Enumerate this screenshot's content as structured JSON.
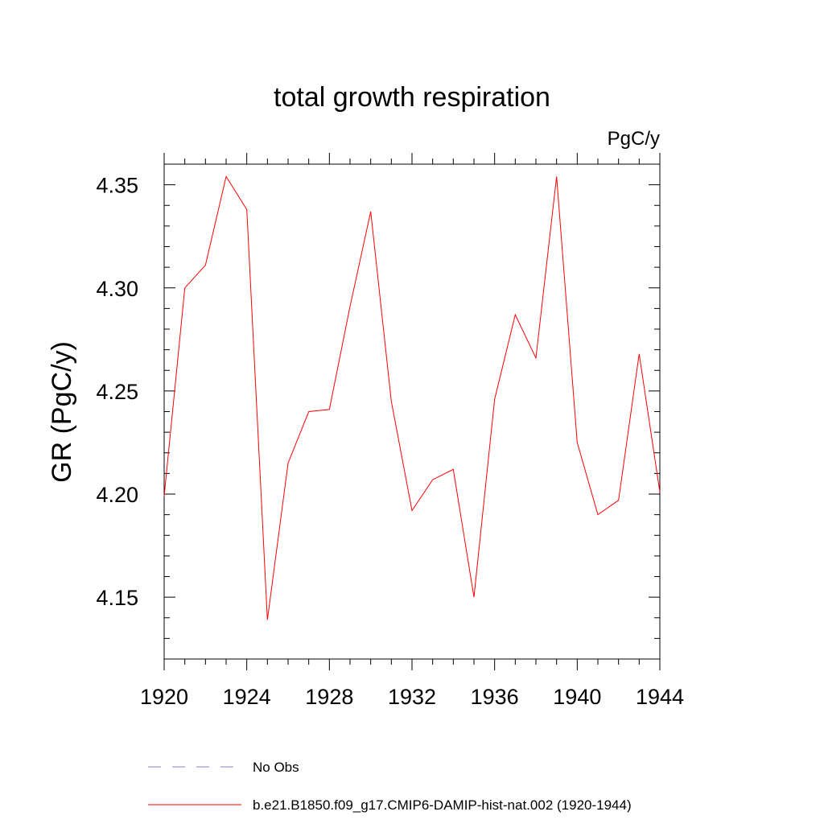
{
  "chart_data": {
    "type": "line",
    "title": "total growth respiration",
    "units_label": "PgC/y",
    "ylabel": "GR  (PgC/y)",
    "xlabel": "",
    "xlim": [
      1920,
      1944
    ],
    "ylim": [
      4.12,
      4.36
    ],
    "x_ticks": [
      1920,
      1924,
      1928,
      1932,
      1936,
      1940,
      1944
    ],
    "x_tick_labels": [
      "1920",
      "1924",
      "1928",
      "1932",
      "1936",
      "1940",
      "1944"
    ],
    "y_ticks": [
      4.15,
      4.2,
      4.25,
      4.3,
      4.35
    ],
    "y_tick_labels": [
      "4.15",
      "4.20",
      "4.25",
      "4.30",
      "4.35"
    ],
    "grid": false,
    "legend_position": "bottom",
    "series": [
      {
        "name": "b.e21.B1850.f09_g17.CMIP6-DAMIP-hist-nat.002 (1920-1944)",
        "color": "#ff0000",
        "style": "solid",
        "x": [
          1920,
          1921,
          1922,
          1923,
          1924,
          1925,
          1926,
          1927,
          1928,
          1929,
          1930,
          1931,
          1932,
          1933,
          1934,
          1935,
          1936,
          1937,
          1938,
          1939,
          1940,
          1941,
          1942,
          1943,
          1944
        ],
        "y": [
          4.199,
          4.3,
          4.311,
          4.354,
          4.338,
          4.139,
          4.215,
          4.24,
          4.241,
          4.291,
          4.337,
          4.245,
          4.192,
          4.207,
          4.212,
          4.15,
          4.246,
          4.287,
          4.266,
          4.354,
          4.225,
          4.19,
          4.197,
          4.268,
          4.201
        ]
      }
    ],
    "legend": [
      {
        "label": "No Obs",
        "color": "#8080c0",
        "style": "dashed"
      },
      {
        "label": "b.e21.B1850.f09_g17.CMIP6-DAMIP-hist-nat.002 (1920-1944)",
        "color": "#ff0000",
        "style": "solid"
      }
    ]
  }
}
